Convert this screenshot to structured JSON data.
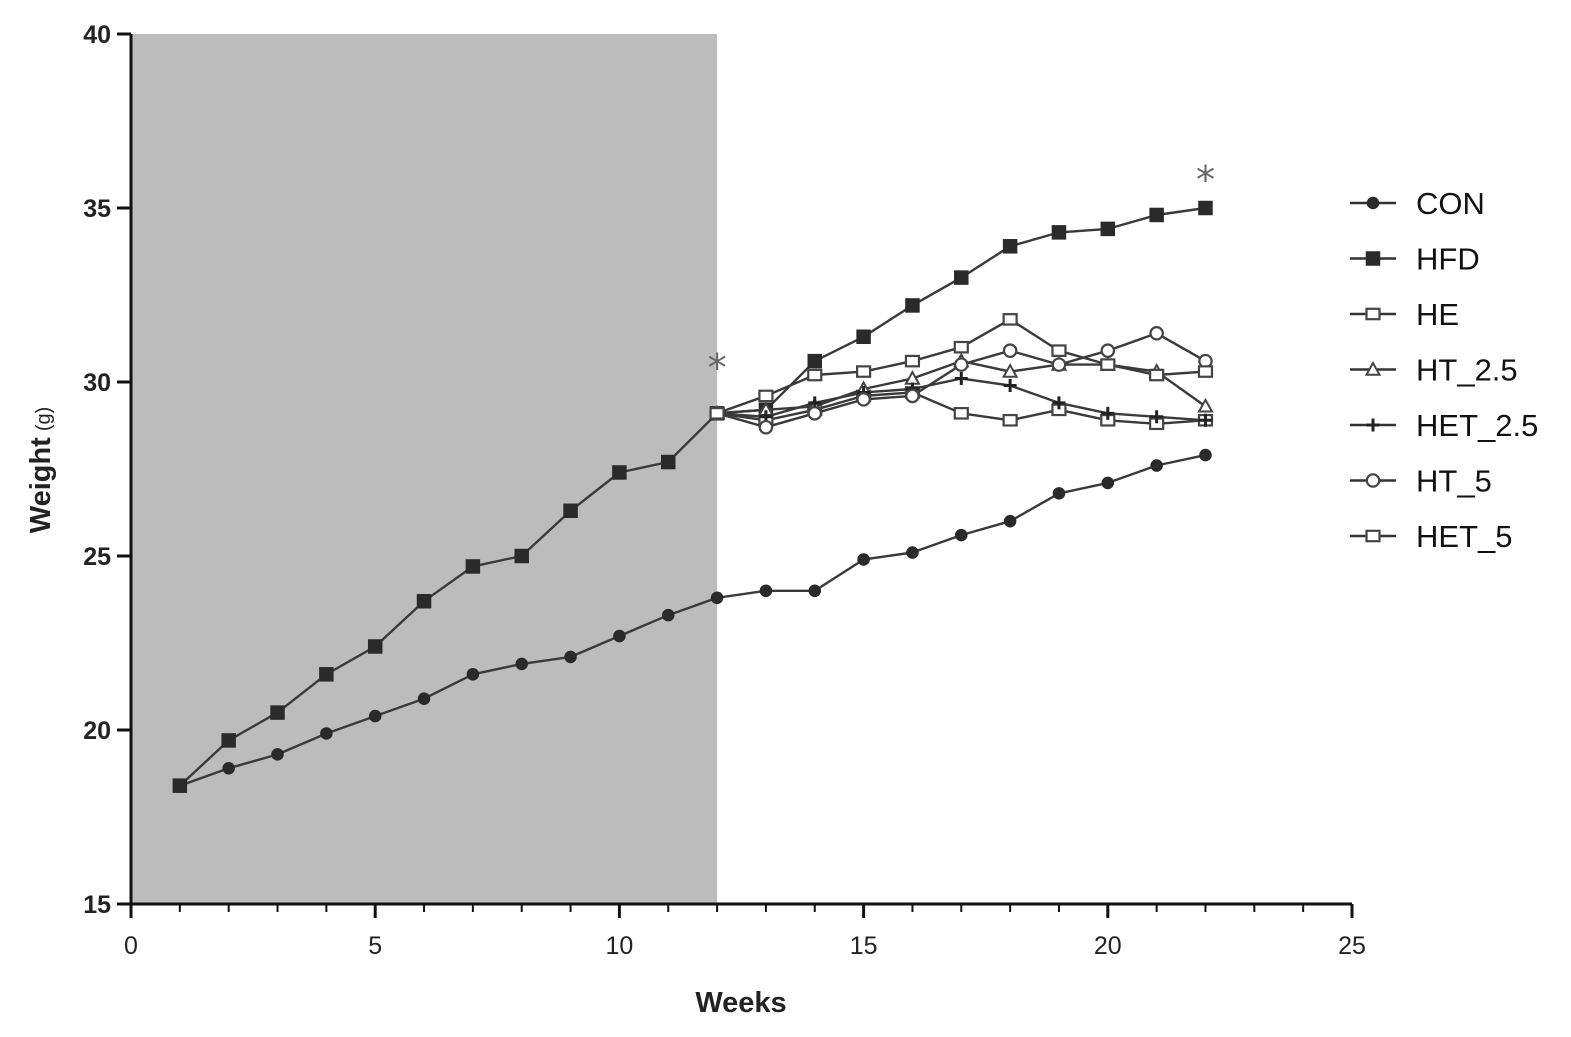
{
  "chart_data": {
    "type": "line",
    "xlabel": "Weeks",
    "ylabel": "Weight",
    "ylabel_unit": "(g)",
    "xlim": [
      0,
      25
    ],
    "ylim": [
      15,
      40
    ],
    "x_ticks": [
      "0",
      "5",
      "10",
      "15",
      "20",
      "25"
    ],
    "y_ticks": [
      "15",
      "20",
      "25",
      "30",
      "35",
      "40"
    ],
    "shaded_region": {
      "x": [
        0,
        12
      ],
      "color": "#bcbcbc"
    },
    "legend_position": "right",
    "annotations": [
      {
        "text": "*",
        "x": 12,
        "y": 30.6
      },
      {
        "text": "*",
        "x": 22,
        "y": 36.0
      }
    ],
    "series": [
      {
        "name": "CON",
        "marker": "circle-filled",
        "x": [
          1,
          2,
          3,
          4,
          5,
          6,
          7,
          8,
          9,
          10,
          11,
          12,
          13,
          14,
          15,
          16,
          17,
          18,
          19,
          20,
          21,
          22
        ],
        "y": [
          18.4,
          18.9,
          19.3,
          19.9,
          20.4,
          20.9,
          21.6,
          21.9,
          22.1,
          22.7,
          23.3,
          23.8,
          24.0,
          24.0,
          24.9,
          25.1,
          25.6,
          26.0,
          26.8,
          27.1,
          27.6,
          27.9
        ]
      },
      {
        "name": "HFD",
        "marker": "square-filled",
        "x": [
          1,
          2,
          3,
          4,
          5,
          6,
          7,
          8,
          9,
          10,
          11,
          12,
          13,
          14,
          15,
          16,
          17,
          18,
          19,
          20,
          21,
          22
        ],
        "y": [
          18.4,
          19.7,
          20.5,
          21.6,
          22.4,
          23.7,
          24.7,
          25.0,
          26.3,
          27.4,
          27.7,
          29.1,
          29.2,
          30.6,
          31.3,
          32.2,
          33.0,
          33.9,
          34.3,
          34.4,
          34.8,
          35.0
        ]
      },
      {
        "name": "HE",
        "marker": "square-open",
        "x": [
          12,
          13,
          14,
          15,
          16,
          17,
          18,
          19,
          20,
          21,
          22
        ],
        "y": [
          29.1,
          28.9,
          29.2,
          29.6,
          29.7,
          29.1,
          28.9,
          29.2,
          28.9,
          28.8,
          28.9
        ]
      },
      {
        "name": "HT_2.5",
        "marker": "triangle-open",
        "x": [
          12,
          13,
          14,
          15,
          16,
          17,
          18,
          19,
          20,
          21,
          22
        ],
        "y": [
          29.1,
          29.2,
          29.3,
          29.8,
          30.1,
          30.6,
          30.3,
          30.5,
          30.5,
          30.3,
          29.3
        ]
      },
      {
        "name": "HET_2.5",
        "marker": "plus",
        "x": [
          12,
          13,
          14,
          15,
          16,
          17,
          18,
          19,
          20,
          21,
          22
        ],
        "y": [
          29.1,
          29.0,
          29.4,
          29.7,
          29.8,
          30.1,
          29.9,
          29.4,
          29.1,
          29.0,
          28.9
        ]
      },
      {
        "name": "HT_5",
        "marker": "circle-open",
        "x": [
          12,
          13,
          14,
          15,
          16,
          17,
          18,
          19,
          20,
          21,
          22
        ],
        "y": [
          29.1,
          28.7,
          29.1,
          29.5,
          29.6,
          30.5,
          30.9,
          30.5,
          30.9,
          31.4,
          30.6
        ]
      },
      {
        "name": "HET_5",
        "marker": "square-open",
        "x": [
          12,
          13,
          14,
          15,
          16,
          17,
          18,
          19,
          20,
          21,
          22
        ],
        "y": [
          29.1,
          29.6,
          30.2,
          30.3,
          30.6,
          31.0,
          31.8,
          30.9,
          30.5,
          30.2,
          30.3
        ]
      }
    ]
  }
}
